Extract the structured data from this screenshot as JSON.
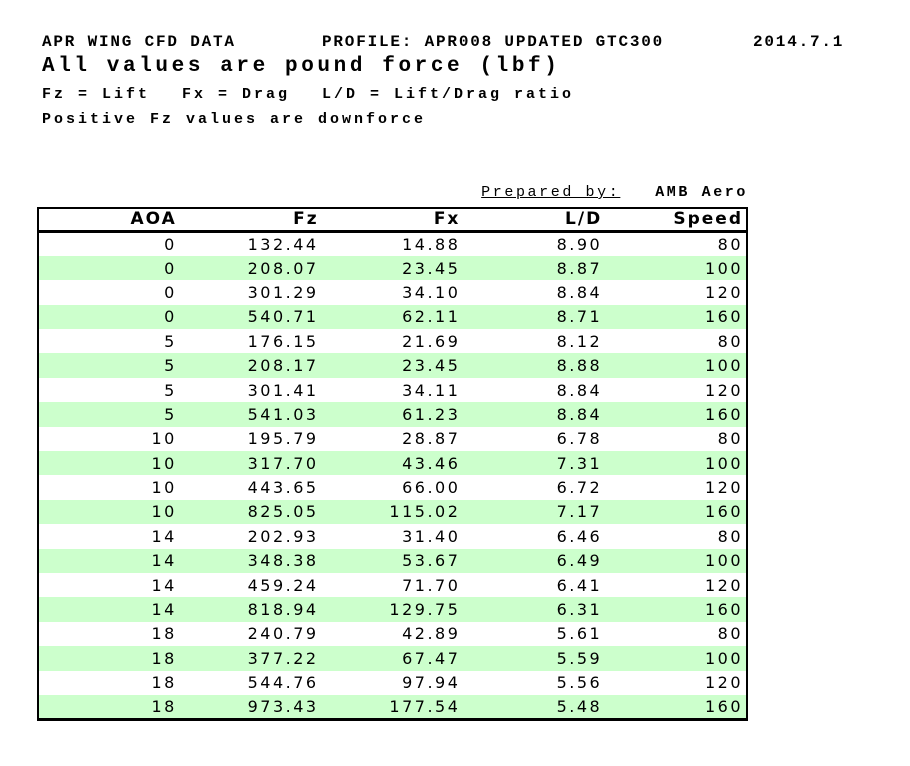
{
  "page": {
    "title_line": {
      "title": "APR WING CFD DATA",
      "profile": "PROFILE: APR008 UPDATED GTC300",
      "date": "2014.7.1"
    },
    "subtitle": "All values are pound force (lbf)",
    "legend": {
      "fz": "Fz = Lift",
      "fx": "Fx = Drag",
      "ld": "L/D = Lift/Drag ratio"
    },
    "note": "Positive Fz values are downforce",
    "prepared_by": {
      "label": "Prepared by:",
      "value": "AMB Aero"
    }
  },
  "table": {
    "columns": [
      "AOA",
      "Fz",
      "Fx",
      "L/D",
      "Speed"
    ],
    "rows": [
      [
        "0",
        "132.44",
        "14.88",
        "8.90",
        "80"
      ],
      [
        "0",
        "208.07",
        "23.45",
        "8.87",
        "100"
      ],
      [
        "0",
        "301.29",
        "34.10",
        "8.84",
        "120"
      ],
      [
        "0",
        "540.71",
        "62.11",
        "8.71",
        "160"
      ],
      [
        "5",
        "176.15",
        "21.69",
        "8.12",
        "80"
      ],
      [
        "5",
        "208.17",
        "23.45",
        "8.88",
        "100"
      ],
      [
        "5",
        "301.41",
        "34.11",
        "8.84",
        "120"
      ],
      [
        "5",
        "541.03",
        "61.23",
        "8.84",
        "160"
      ],
      [
        "10",
        "195.79",
        "28.87",
        "6.78",
        "80"
      ],
      [
        "10",
        "317.70",
        "43.46",
        "7.31",
        "100"
      ],
      [
        "10",
        "443.65",
        "66.00",
        "6.72",
        "120"
      ],
      [
        "10",
        "825.05",
        "115.02",
        "7.17",
        "160"
      ],
      [
        "14",
        "202.93",
        "31.40",
        "6.46",
        "80"
      ],
      [
        "14",
        "348.38",
        "53.67",
        "6.49",
        "100"
      ],
      [
        "14",
        "459.24",
        "71.70",
        "6.41",
        "120"
      ],
      [
        "14",
        "818.94",
        "129.75",
        "6.31",
        "160"
      ],
      [
        "18",
        "240.79",
        "42.89",
        "5.61",
        "80"
      ],
      [
        "18",
        "377.22",
        "67.47",
        "5.59",
        "100"
      ],
      [
        "18",
        "544.76",
        "97.94",
        "5.56",
        "120"
      ],
      [
        "18",
        "973.43",
        "177.54",
        "5.48",
        "160"
      ]
    ]
  },
  "colors": {
    "row_stripe": "#ccffcc",
    "border": "#000000",
    "text": "#000000"
  }
}
